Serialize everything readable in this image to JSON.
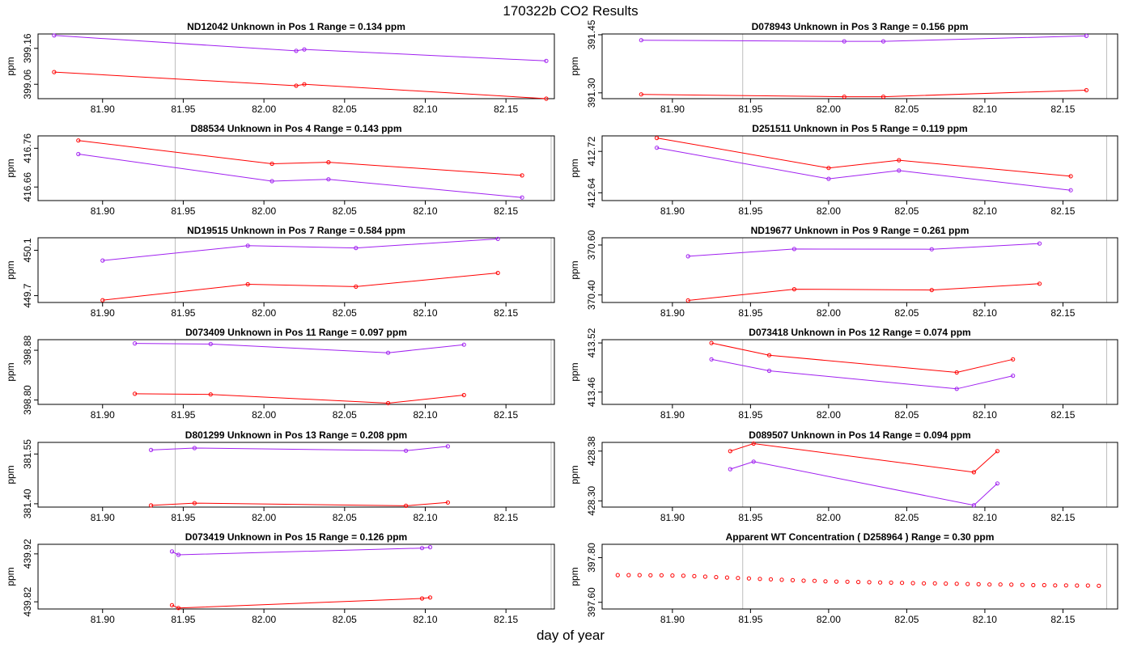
{
  "figure": {
    "title": "170322b  CO2 Results",
    "xlabel": "day of year"
  },
  "colors": {
    "red": "#ff0000",
    "purple": "#a020f0",
    "gray": "#bebebe",
    "frame": "#000000"
  },
  "chart_data": [
    {
      "type": "line",
      "title": "ND12042    Unknown in Pos 1         Range =  0.134 ppm",
      "ylabel": "ppm",
      "xlim": [
        81.86,
        82.18
      ],
      "ylim": [
        399.02,
        399.2
      ],
      "xticks": [
        "81.90",
        "81.95",
        "82.00",
        "82.05",
        "82.10",
        "82.15"
      ],
      "yticks": [
        "399.06",
        "399.16"
      ],
      "vline": 81.945,
      "series": [
        {
          "name": "purple",
          "color": "#a020f0",
          "x": [
            81.87,
            82.02,
            82.025,
            82.175
          ],
          "y": [
            399.196,
            399.153,
            399.157,
            399.125
          ]
        },
        {
          "name": "red",
          "color": "#ff0000",
          "x": [
            81.87,
            82.02,
            82.025,
            82.175
          ],
          "y": [
            399.094,
            399.056,
            399.06,
            399.02
          ]
        }
      ]
    },
    {
      "type": "line",
      "title": "D078943    Unknown in Pos 3         Range =  0.156 ppm",
      "ylabel": "ppm",
      "xlim": [
        81.855,
        82.185
      ],
      "ylim": [
        391.285,
        391.452
      ],
      "xticks": [
        "81.90",
        "81.95",
        "82.00",
        "82.05",
        "82.10",
        "82.15"
      ],
      "yticks": [
        "391.30",
        "391.45"
      ],
      "vline": 81.945,
      "vline2": 82.178,
      "series": [
        {
          "name": "purple",
          "color": "#a020f0",
          "x": [
            81.88,
            82.01,
            82.035,
            82.165
          ],
          "y": [
            391.436,
            391.433,
            391.433,
            391.447
          ]
        },
        {
          "name": "red",
          "color": "#ff0000",
          "x": [
            81.88,
            82.01,
            82.035,
            82.165
          ],
          "y": [
            391.296,
            391.29,
            391.29,
            391.307
          ]
        }
      ]
    },
    {
      "type": "line",
      "title": "D88534    Unknown in Pos 4         Range =  0.143 ppm",
      "ylabel": "ppm",
      "xlim": [
        81.86,
        82.18
      ],
      "ylim": [
        416.625,
        416.792
      ],
      "xticks": [
        "81.90",
        "81.95",
        "82.00",
        "82.05",
        "82.10",
        "82.15"
      ],
      "yticks": [
        "416.66",
        "416.76"
      ],
      "vline": 81.945,
      "vline2": 82.178,
      "series": [
        {
          "name": "red",
          "color": "#ff0000",
          "x": [
            81.885,
            82.005,
            82.04,
            82.16
          ],
          "y": [
            416.78,
            416.72,
            416.724,
            416.69
          ]
        },
        {
          "name": "purple",
          "color": "#a020f0",
          "x": [
            81.885,
            82.005,
            82.04,
            82.16
          ],
          "y": [
            416.745,
            416.675,
            416.68,
            416.633
          ]
        }
      ]
    },
    {
      "type": "line",
      "title": "D251511    Unknown in Pos 5         Range =  0.119 ppm",
      "ylabel": "ppm",
      "xlim": [
        81.855,
        82.185
      ],
      "ylim": [
        412.625,
        412.75
      ],
      "xticks": [
        "81.90",
        "81.95",
        "82.00",
        "82.05",
        "82.10",
        "82.15"
      ],
      "yticks": [
        "412.64",
        "412.72"
      ],
      "vline": 81.945,
      "vline2": 82.178,
      "series": [
        {
          "name": "red",
          "color": "#ff0000",
          "x": [
            81.89,
            82.0,
            82.045,
            82.155
          ],
          "y": [
            412.746,
            412.688,
            412.703,
            412.672
          ]
        },
        {
          "name": "purple",
          "color": "#a020f0",
          "x": [
            81.89,
            82.0,
            82.045,
            82.155
          ],
          "y": [
            412.727,
            412.667,
            412.683,
            412.645
          ]
        }
      ]
    },
    {
      "type": "line",
      "title": "ND19515    Unknown in Pos 7         Range =  0.584 ppm",
      "ylabel": "ppm",
      "xlim": [
        81.86,
        82.18
      ],
      "ylim": [
        449.64,
        450.21
      ],
      "xticks": [
        "81.90",
        "81.95",
        "82.00",
        "82.05",
        "82.10",
        "82.15"
      ],
      "yticks": [
        "449.7",
        "450.1"
      ],
      "vline": 81.945,
      "vline2": 82.178,
      "series": [
        {
          "name": "purple",
          "color": "#a020f0",
          "x": [
            81.9,
            81.99,
            82.057,
            82.145
          ],
          "y": [
            450.01,
            450.14,
            450.12,
            450.2
          ]
        },
        {
          "name": "red",
          "color": "#ff0000",
          "x": [
            81.9,
            81.99,
            82.057,
            82.145
          ],
          "y": [
            449.66,
            449.8,
            449.78,
            449.9
          ]
        }
      ]
    },
    {
      "type": "line",
      "title": "ND19677    Unknown in Pos 9         Range =  0.261 ppm",
      "ylabel": "ppm",
      "xlim": [
        81.855,
        82.185
      ],
      "ylim": [
        370.37,
        370.629
      ],
      "xticks": [
        "81.90",
        "81.95",
        "82.00",
        "82.05",
        "82.10",
        "82.15"
      ],
      "yticks": [
        "370.40",
        "370.60"
      ],
      "vline": 81.945,
      "vline2": 82.178,
      "series": [
        {
          "name": "purple",
          "color": "#a020f0",
          "x": [
            81.91,
            81.978,
            82.066,
            82.135
          ],
          "y": [
            370.555,
            370.584,
            370.583,
            370.606
          ]
        },
        {
          "name": "red",
          "color": "#ff0000",
          "x": [
            81.91,
            81.978,
            82.066,
            82.135
          ],
          "y": [
            370.378,
            370.423,
            370.42,
            370.445
          ]
        }
      ]
    },
    {
      "type": "line",
      "title": "D073409    Unknown in Pos 11         Range =  0.097 ppm",
      "ylabel": "ppm",
      "xlim": [
        81.86,
        82.18
      ],
      "ylim": [
        398.793,
        398.897
      ],
      "xticks": [
        "81.90",
        "81.95",
        "82.00",
        "82.05",
        "82.10",
        "82.15"
      ],
      "yticks": [
        "398.80",
        "398.88"
      ],
      "vline": 81.945,
      "vline2": 82.178,
      "series": [
        {
          "name": "purple",
          "color": "#a020f0",
          "x": [
            81.92,
            81.967,
            82.077,
            82.124
          ],
          "y": [
            398.891,
            398.89,
            398.876,
            398.889
          ]
        },
        {
          "name": "red",
          "color": "#ff0000",
          "x": [
            81.92,
            81.967,
            82.077,
            82.124
          ],
          "y": [
            398.81,
            398.809,
            398.795,
            398.808
          ]
        }
      ]
    },
    {
      "type": "line",
      "title": "D073418    Unknown in Pos 12         Range =  0.074 ppm",
      "ylabel": "ppm",
      "xlim": [
        81.855,
        82.185
      ],
      "ylim": [
        413.445,
        413.524
      ],
      "xticks": [
        "81.90",
        "81.95",
        "82.00",
        "82.05",
        "82.10",
        "82.15"
      ],
      "yticks": [
        "413.46",
        "413.52"
      ],
      "vline": 81.945,
      "vline2": 82.178,
      "series": [
        {
          "name": "red",
          "color": "#ff0000",
          "x": [
            81.925,
            81.962,
            82.082,
            82.118
          ],
          "y": [
            413.52,
            413.505,
            413.484,
            413.5
          ]
        },
        {
          "name": "purple",
          "color": "#a020f0",
          "x": [
            81.925,
            81.962,
            82.082,
            82.118
          ],
          "y": [
            413.5,
            413.486,
            413.464,
            413.48
          ]
        }
      ]
    },
    {
      "type": "line",
      "title": "D801299    Unknown in Pos 13         Range =  0.208 ppm",
      "ylabel": "ppm",
      "xlim": [
        81.86,
        82.18
      ],
      "ylim": [
        381.39,
        381.585
      ],
      "xticks": [
        "81.90",
        "81.95",
        "82.00",
        "82.05",
        "82.10",
        "82.15"
      ],
      "yticks": [
        "381.40",
        "381.55"
      ],
      "vline": 81.945,
      "vline2": 82.178,
      "series": [
        {
          "name": "purple",
          "color": "#a020f0",
          "x": [
            81.93,
            81.957,
            82.088,
            82.114
          ],
          "y": [
            381.562,
            381.568,
            381.56,
            381.573
          ]
        },
        {
          "name": "red",
          "color": "#ff0000",
          "x": [
            81.93,
            81.957,
            82.088,
            82.114
          ],
          "y": [
            381.395,
            381.402,
            381.394,
            381.404
          ]
        }
      ]
    },
    {
      "type": "line",
      "title": "D089507    Unknown in Pos 14         Range =  0.094 ppm",
      "ylabel": "ppm",
      "xlim": [
        81.855,
        82.185
      ],
      "ylim": [
        428.29,
        428.394
      ],
      "xticks": [
        "81.90",
        "81.95",
        "82.00",
        "82.05",
        "82.10",
        "82.15"
      ],
      "yticks": [
        "428.30",
        "428.38"
      ],
      "vline": 81.945,
      "vline2": 82.178,
      "series": [
        {
          "name": "red",
          "color": "#ff0000",
          "x": [
            81.937,
            81.952,
            82.093,
            82.108
          ],
          "y": [
            428.38,
            428.392,
            428.346,
            428.38
          ]
        },
        {
          "name": "purple",
          "color": "#a020f0",
          "x": [
            81.937,
            81.952,
            82.093,
            82.108
          ],
          "y": [
            428.351,
            428.363,
            428.293,
            428.328
          ]
        }
      ]
    },
    {
      "type": "line",
      "title": "D073419    Unknown in Pos 15         Range =  0.126 ppm",
      "ylabel": "ppm",
      "xlim": [
        81.86,
        82.18
      ],
      "ylim": [
        439.805,
        439.94
      ],
      "xticks": [
        "81.90",
        "81.95",
        "82.00",
        "82.05",
        "82.10",
        "82.15"
      ],
      "yticks": [
        "439.82",
        "439.92"
      ],
      "vline": 81.945,
      "vline2": 82.178,
      "series": [
        {
          "name": "purple",
          "color": "#a020f0",
          "x": [
            81.943,
            81.947,
            82.098,
            82.103
          ],
          "y": [
            439.925,
            439.918,
            439.932,
            439.934
          ]
        },
        {
          "name": "red",
          "color": "#ff0000",
          "x": [
            81.943,
            81.947,
            82.098,
            82.103
          ],
          "y": [
            439.813,
            439.807,
            439.827,
            439.829
          ]
        }
      ]
    },
    {
      "type": "scatter",
      "title": "Apparent WT Concentration ( D258964 )         Range = 0.30 ppm",
      "ylabel": "ppm",
      "xlim": [
        81.855,
        82.185
      ],
      "ylim": [
        397.57,
        397.86
      ],
      "xticks": [
        "81.90",
        "81.95",
        "82.00",
        "82.05",
        "82.10",
        "82.15"
      ],
      "yticks": [
        "397.60",
        "397.80"
      ],
      "vline": 81.945,
      "vline2": 82.178,
      "series": [
        {
          "name": "wt",
          "color": "#ff0000",
          "x": [
            81.865,
            81.872,
            81.879,
            81.886,
            81.893,
            81.9,
            81.907,
            81.914,
            81.921,
            81.928,
            81.935,
            81.942,
            81.949,
            81.956,
            81.963,
            81.97,
            81.977,
            81.984,
            81.991,
            81.998,
            82.005,
            82.012,
            82.019,
            82.026,
            82.033,
            82.04,
            82.047,
            82.054,
            82.061,
            82.068,
            82.075,
            82.082,
            82.089,
            82.096,
            82.103,
            82.11,
            82.117,
            82.124,
            82.131,
            82.138,
            82.145,
            82.152,
            82.159,
            82.166,
            82.173
          ],
          "y": [
            397.722,
            397.722,
            397.722,
            397.721,
            397.721,
            397.72,
            397.719,
            397.717,
            397.715,
            397.713,
            397.711,
            397.709,
            397.707,
            397.705,
            397.703,
            397.701,
            397.699,
            397.697,
            397.696,
            397.694,
            397.693,
            397.692,
            397.691,
            397.69,
            397.689,
            397.688,
            397.687,
            397.686,
            397.685,
            397.685,
            397.684,
            397.683,
            397.682,
            397.681,
            397.68,
            397.68,
            397.679,
            397.678,
            397.677,
            397.677,
            397.676,
            397.676,
            397.675,
            397.675,
            397.674
          ]
        }
      ]
    }
  ]
}
